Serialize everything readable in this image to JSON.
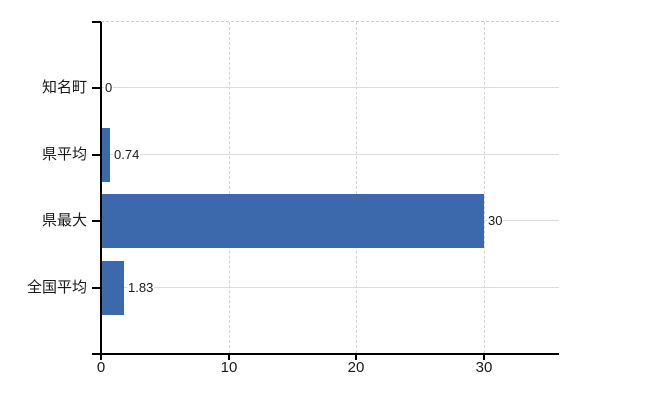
{
  "chart_data": {
    "type": "bar",
    "orientation": "horizontal",
    "title": "",
    "xlabel": "",
    "ylabel": "",
    "categories": [
      "知名町",
      "県平均",
      "県最大",
      "全国平均"
    ],
    "values": [
      0,
      0.74,
      30,
      1.83
    ],
    "value_labels": [
      "0",
      "0.74",
      "30",
      "1.83"
    ],
    "x_ticks": [
      0,
      10,
      20,
      30
    ],
    "x_tick_labels": [
      "0",
      "10",
      "20",
      "30"
    ],
    "xlim": [
      0,
      35.9
    ],
    "grid": true,
    "legend": false,
    "bar_color": "#3c69ab",
    "colors": {
      "background": "#ffffff",
      "axis": "#000000",
      "text": "#1a1a1a",
      "gridline_horizontal": "#d8ded8",
      "gridline_vertical": "#d8d1d8",
      "top_border": "#cfcacf"
    }
  }
}
